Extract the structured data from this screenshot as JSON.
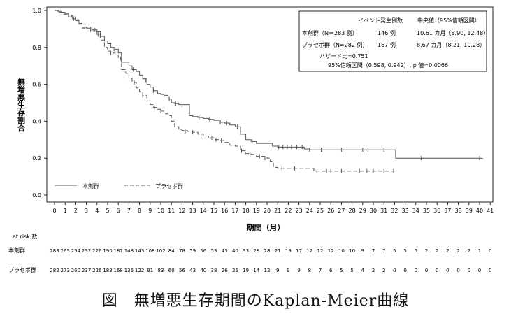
{
  "chart_data": {
    "type": "line",
    "ylabel": "無増悪生存割合",
    "xlabel": "期間（月）",
    "ylim": [
      0.0,
      1.0
    ],
    "xlim": [
      0,
      41
    ],
    "yticks": [
      "0.0",
      "0.2",
      "0.4",
      "0.6",
      "0.8",
      "1.0"
    ],
    "xticks": [
      "0",
      "1",
      "2",
      "3",
      "4",
      "5",
      "6",
      "7",
      "8",
      "9",
      "10",
      "11",
      "12",
      "13",
      "14",
      "15",
      "16",
      "17",
      "18",
      "19",
      "20",
      "21",
      "22",
      "23",
      "24",
      "25",
      "26",
      "27",
      "28",
      "29",
      "30",
      "31",
      "32",
      "33",
      "34",
      "35",
      "36",
      "37",
      "38",
      "39",
      "40",
      "41"
    ],
    "grid": false,
    "stats_box": {
      "header_events": "イベント発生例数",
      "header_median": "中央値（95%信頼区間）",
      "rows": [
        {
          "label": "本剤群（N＝283 例）",
          "events": "146 例",
          "median": "10.61 カ月（8.90, 12.48）"
        },
        {
          "label": "プラセボ群（N=282 例）",
          "events": "167 例",
          "median": "8.67 カ月（8.21, 10.28）"
        }
      ],
      "hazard_ratio": "ハザード比=0.751",
      "ci_p": "95%信頼区間（0.598, 0.942）, p 値=0.0066"
    },
    "legend_position": "bottom-left",
    "series": [
      {
        "name": "本剤群",
        "style": "solid",
        "color": "#555555",
        "points": [
          [
            0,
            1.0
          ],
          [
            0.3,
            0.995
          ],
          [
            0.6,
            0.99
          ],
          [
            1.0,
            0.985
          ],
          [
            1.3,
            0.975
          ],
          [
            1.6,
            0.965
          ],
          [
            2.0,
            0.95
          ],
          [
            2.3,
            0.93
          ],
          [
            2.6,
            0.91
          ],
          [
            3.0,
            0.905
          ],
          [
            3.3,
            0.9
          ],
          [
            3.7,
            0.895
          ],
          [
            4.0,
            0.885
          ],
          [
            4.3,
            0.86
          ],
          [
            4.7,
            0.835
          ],
          [
            5.0,
            0.82
          ],
          [
            5.3,
            0.8
          ],
          [
            5.7,
            0.79
          ],
          [
            6.0,
            0.77
          ],
          [
            6.3,
            0.72
          ],
          [
            6.7,
            0.72
          ],
          [
            7.0,
            0.7
          ],
          [
            7.3,
            0.68
          ],
          [
            7.7,
            0.67
          ],
          [
            8.0,
            0.65
          ],
          [
            8.3,
            0.63
          ],
          [
            8.7,
            0.6
          ],
          [
            9.0,
            0.585
          ],
          [
            9.3,
            0.565
          ],
          [
            9.7,
            0.55
          ],
          [
            10.0,
            0.545
          ],
          [
            10.3,
            0.54
          ],
          [
            10.7,
            0.52
          ],
          [
            11.0,
            0.5
          ],
          [
            11.3,
            0.495
          ],
          [
            11.7,
            0.49
          ],
          [
            12.0,
            0.49
          ],
          [
            12.3,
            0.49
          ],
          [
            12.7,
            0.43
          ],
          [
            13.0,
            0.425
          ],
          [
            13.5,
            0.42
          ],
          [
            14.0,
            0.415
          ],
          [
            14.5,
            0.41
          ],
          [
            15.0,
            0.405
          ],
          [
            15.5,
            0.395
          ],
          [
            16.0,
            0.39
          ],
          [
            16.5,
            0.38
          ],
          [
            17.0,
            0.37
          ],
          [
            17.5,
            0.33
          ],
          [
            18.0,
            0.3
          ],
          [
            18.5,
            0.29
          ],
          [
            19.0,
            0.28
          ],
          [
            20.0,
            0.28
          ],
          [
            20.5,
            0.265
          ],
          [
            21.0,
            0.26
          ],
          [
            22.0,
            0.26
          ],
          [
            23.0,
            0.26
          ],
          [
            23.5,
            0.25
          ],
          [
            24.0,
            0.245
          ],
          [
            26.0,
            0.245
          ],
          [
            28.0,
            0.245
          ],
          [
            30.0,
            0.245
          ],
          [
            32.0,
            0.245
          ],
          [
            32.1,
            0.2
          ],
          [
            34.0,
            0.2
          ],
          [
            36.0,
            0.2
          ],
          [
            38.0,
            0.2
          ],
          [
            40.0,
            0.2
          ],
          [
            40.3,
            0.2
          ]
        ],
        "censors": [
          [
            1.7,
            0.965
          ],
          [
            3.4,
            0.9
          ],
          [
            3.8,
            0.895
          ],
          [
            5.6,
            0.79
          ],
          [
            7.4,
            0.68
          ],
          [
            8.6,
            0.62
          ],
          [
            9.3,
            0.565
          ],
          [
            10.3,
            0.54
          ],
          [
            10.8,
            0.52
          ],
          [
            11.4,
            0.495
          ],
          [
            12.0,
            0.49
          ],
          [
            13.6,
            0.42
          ],
          [
            14.6,
            0.41
          ],
          [
            15.6,
            0.395
          ],
          [
            16.2,
            0.39
          ],
          [
            17.2,
            0.37
          ],
          [
            18.6,
            0.29
          ],
          [
            21.1,
            0.26
          ],
          [
            21.5,
            0.26
          ],
          [
            21.9,
            0.26
          ],
          [
            22.3,
            0.26
          ],
          [
            22.8,
            0.26
          ],
          [
            23.3,
            0.26
          ],
          [
            24.0,
            0.245
          ],
          [
            25.1,
            0.245
          ],
          [
            27.0,
            0.245
          ],
          [
            29.0,
            0.245
          ],
          [
            29.5,
            0.245
          ],
          [
            31.0,
            0.245
          ],
          [
            34.5,
            0.2
          ],
          [
            40.0,
            0.2
          ]
        ]
      },
      {
        "name": "プラセボ群",
        "style": "dashed",
        "color": "#555555",
        "points": [
          [
            0,
            1.0
          ],
          [
            0.4,
            0.99
          ],
          [
            0.8,
            0.98
          ],
          [
            1.3,
            0.965
          ],
          [
            1.7,
            0.955
          ],
          [
            2.0,
            0.945
          ],
          [
            2.3,
            0.925
          ],
          [
            2.6,
            0.905
          ],
          [
            3.0,
            0.9
          ],
          [
            3.4,
            0.895
          ],
          [
            3.7,
            0.885
          ],
          [
            4.0,
            0.87
          ],
          [
            4.3,
            0.84
          ],
          [
            4.7,
            0.8
          ],
          [
            5.0,
            0.78
          ],
          [
            5.3,
            0.77
          ],
          [
            5.7,
            0.76
          ],
          [
            6.0,
            0.74
          ],
          [
            6.3,
            0.68
          ],
          [
            6.7,
            0.66
          ],
          [
            7.0,
            0.63
          ],
          [
            7.3,
            0.61
          ],
          [
            7.7,
            0.58
          ],
          [
            8.0,
            0.56
          ],
          [
            8.3,
            0.54
          ],
          [
            8.7,
            0.51
          ],
          [
            9.0,
            0.49
          ],
          [
            9.3,
            0.475
          ],
          [
            9.7,
            0.465
          ],
          [
            10.0,
            0.455
          ],
          [
            10.3,
            0.44
          ],
          [
            10.7,
            0.43
          ],
          [
            11.0,
            0.4
          ],
          [
            11.3,
            0.37
          ],
          [
            11.7,
            0.355
          ],
          [
            12.0,
            0.35
          ],
          [
            12.5,
            0.345
          ],
          [
            13.0,
            0.34
          ],
          [
            13.5,
            0.33
          ],
          [
            14.0,
            0.32
          ],
          [
            14.5,
            0.31
          ],
          [
            15.0,
            0.3
          ],
          [
            15.5,
            0.295
          ],
          [
            16.0,
            0.285
          ],
          [
            16.5,
            0.27
          ],
          [
            17.0,
            0.265
          ],
          [
            17.5,
            0.24
          ],
          [
            18.0,
            0.225
          ],
          [
            18.5,
            0.22
          ],
          [
            19.0,
            0.21
          ],
          [
            20.0,
            0.2
          ],
          [
            20.3,
            0.18
          ],
          [
            20.6,
            0.15
          ],
          [
            21.0,
            0.145
          ],
          [
            22.0,
            0.145
          ],
          [
            23.0,
            0.145
          ],
          [
            24.0,
            0.145
          ],
          [
            24.4,
            0.13
          ],
          [
            26.0,
            0.13
          ],
          [
            28.0,
            0.13
          ],
          [
            30.0,
            0.13
          ],
          [
            32.0,
            0.13
          ]
        ],
        "censors": [
          [
            1.8,
            0.955
          ],
          [
            3.4,
            0.895
          ],
          [
            4.1,
            0.87
          ],
          [
            5.3,
            0.77
          ],
          [
            6.2,
            0.74
          ],
          [
            7.5,
            0.61
          ],
          [
            8.3,
            0.54
          ],
          [
            9.4,
            0.475
          ],
          [
            10.0,
            0.455
          ],
          [
            12.3,
            0.345
          ],
          [
            13.0,
            0.34
          ],
          [
            14.8,
            0.31
          ],
          [
            15.2,
            0.3
          ],
          [
            15.7,
            0.295
          ],
          [
            17.6,
            0.24
          ],
          [
            18.4,
            0.22
          ],
          [
            19.3,
            0.21
          ],
          [
            19.8,
            0.2
          ],
          [
            21.4,
            0.145
          ],
          [
            22.6,
            0.145
          ],
          [
            24.7,
            0.13
          ],
          [
            25.6,
            0.13
          ],
          [
            26.0,
            0.13
          ],
          [
            27.0,
            0.13
          ],
          [
            28.7,
            0.13
          ],
          [
            29.4,
            0.13
          ],
          [
            30.0,
            0.13
          ],
          [
            31.0,
            0.13
          ],
          [
            31.9,
            0.13
          ]
        ]
      }
    ],
    "at_risk": {
      "title": "at risk 数",
      "rows": [
        {
          "label": "本剤群",
          "values": [
            "283",
            "263",
            "254",
            "232",
            "226",
            "190",
            "187",
            "148",
            "143",
            "108",
            "102",
            "84",
            "78",
            "59",
            "56",
            "53",
            "43",
            "40",
            "33",
            "28",
            "28",
            "21",
            "19",
            "17",
            "12",
            "12",
            "12",
            "10",
            "10",
            "9",
            "7",
            "7",
            "5",
            "5",
            "5",
            "2",
            "2",
            "2",
            "2",
            "2",
            "1",
            "0"
          ]
        },
        {
          "label": "プラセボ群",
          "values": [
            "282",
            "273",
            "260",
            "237",
            "226",
            "183",
            "168",
            "136",
            "122",
            "91",
            "83",
            "60",
            "56",
            "43",
            "40",
            "38",
            "26",
            "25",
            "19",
            "14",
            "12",
            "9",
            "9",
            "9",
            "8",
            "7",
            "6",
            "5",
            "5",
            "4",
            "2",
            "2",
            "0",
            "0",
            "0",
            "0",
            "0",
            "0",
            "0",
            "0",
            "0",
            "0"
          ]
        }
      ]
    },
    "caption": "図　無増悪生存期間のKaplan-Meier曲線"
  }
}
